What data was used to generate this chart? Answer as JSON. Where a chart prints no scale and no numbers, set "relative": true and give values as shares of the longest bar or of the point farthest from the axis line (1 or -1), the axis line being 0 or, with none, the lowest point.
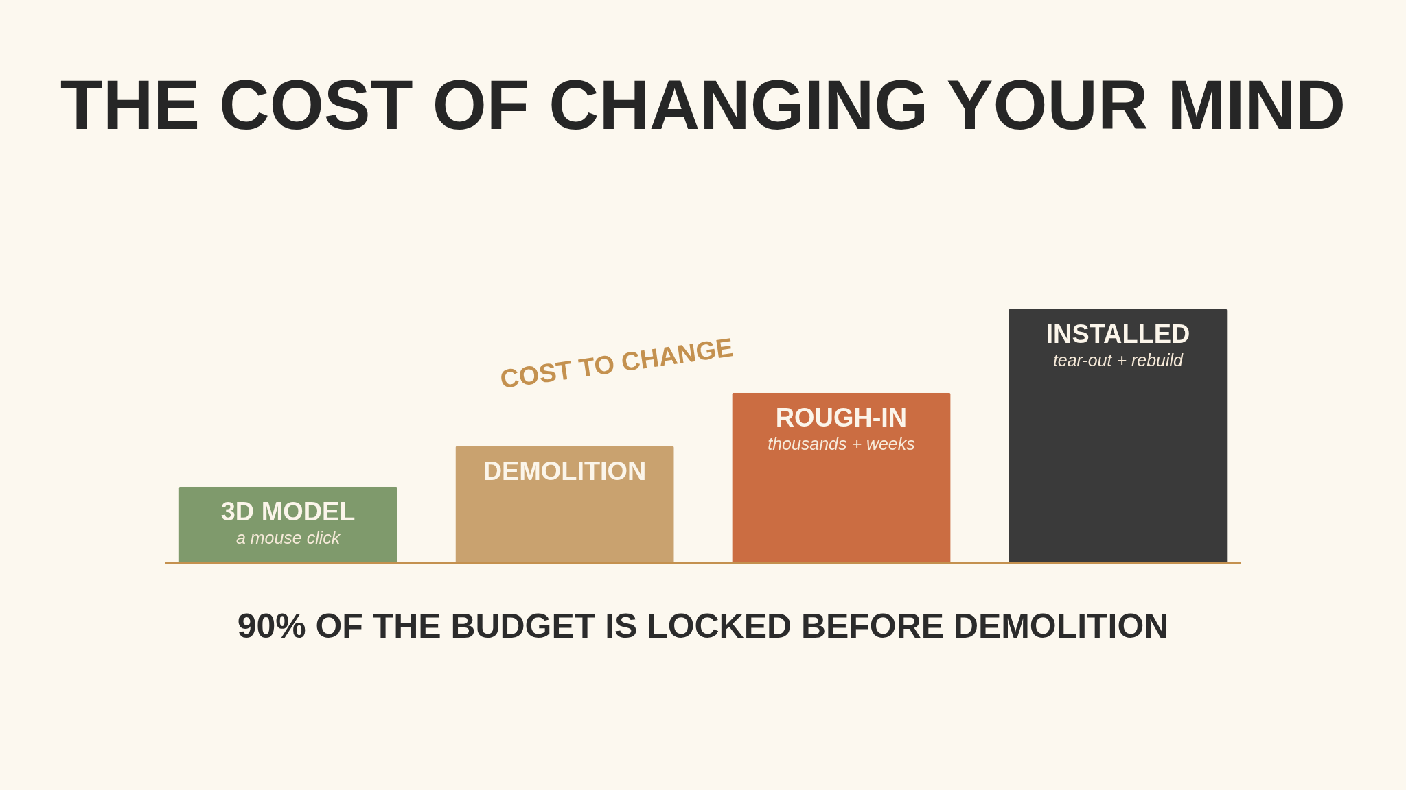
{
  "chart_data": {
    "type": "bar",
    "title": "THE COST OF CHANGING YOUR MIND",
    "relative": true,
    "categories": [
      "3D MODEL",
      "DEMOLITION",
      "ROUGH-IN",
      "INSTALLED"
    ],
    "values": [
      0.3,
      0.46,
      0.67,
      1
    ],
    "colors": [
      "#7f9a6c",
      "#c9a26f",
      "#cb6d42",
      "#3a3a3a"
    ],
    "annotations": [
      "a mouse click",
      "thousands + weeks",
      "tear-out + rebuild",
      "COST TO CHANGE",
      "90% OF THE BUDGET IS LOCKED BEFORE DEMOLITION"
    ]
  }
}
